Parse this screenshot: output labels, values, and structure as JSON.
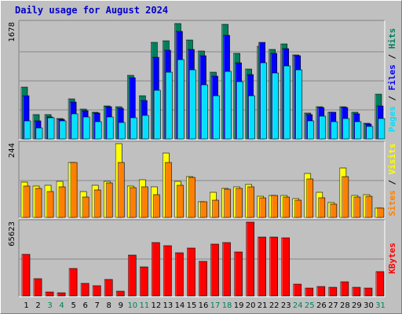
{
  "title": "Daily usage for August 2024",
  "colors": {
    "hits": "#00805c",
    "files": "#0000ff",
    "pages": "#00e0ff",
    "visits": "#ffff00",
    "sites": "#ff8000",
    "kbytes": "#ff0000",
    "weekday": "#000000",
    "weekend": "#00805c",
    "panel": "#c0c0c0"
  },
  "chart_data": [
    {
      "type": "bar",
      "ylabel_parts": [
        "Pages",
        "Files",
        "Hits"
      ],
      "ymax_label": "1678",
      "ylim": [
        0,
        1678
      ],
      "categories": [
        "1",
        "2",
        "3",
        "4",
        "5",
        "6",
        "7",
        "8",
        "9",
        "10",
        "11",
        "12",
        "13",
        "14",
        "15",
        "16",
        "17",
        "18",
        "19",
        "20",
        "21",
        "22",
        "23",
        "24",
        "25",
        "26",
        "27",
        "28",
        "29",
        "30",
        "31"
      ],
      "series": [
        {
          "name": "Hits",
          "values": [
            750,
            350,
            350,
            300,
            580,
            430,
            380,
            480,
            460,
            920,
            620,
            1400,
            1420,
            1670,
            1430,
            1270,
            960,
            1650,
            1240,
            1010,
            1340,
            1290,
            1370,
            1210,
            370,
            470,
            390,
            460,
            380,
            230,
            650
          ]
        },
        {
          "name": "Files",
          "values": [
            620,
            260,
            320,
            280,
            530,
            410,
            370,
            460,
            440,
            880,
            560,
            1180,
            1280,
            1550,
            1290,
            1200,
            910,
            1500,
            1100,
            930,
            1400,
            1240,
            1300,
            1200,
            350,
            450,
            380,
            450,
            360,
            220,
            480
          ]
        },
        {
          "name": "Pages",
          "values": [
            260,
            160,
            310,
            260,
            360,
            320,
            250,
            320,
            240,
            310,
            340,
            700,
            960,
            1150,
            1000,
            780,
            620,
            980,
            830,
            620,
            1100,
            950,
            1050,
            1000,
            260,
            330,
            250,
            300,
            250,
            180,
            300
          ]
        }
      ]
    },
    {
      "type": "bar",
      "ylabel_parts": [
        "Sites",
        "Visits"
      ],
      "ymax_label": "244",
      "ylim": [
        0,
        244
      ],
      "categories": [
        "1",
        "2",
        "3",
        "4",
        "5",
        "6",
        "7",
        "8",
        "9",
        "10",
        "11",
        "12",
        "13",
        "14",
        "15",
        "16",
        "17",
        "18",
        "19",
        "20",
        "21",
        "22",
        "23",
        "24",
        "25",
        "26",
        "27",
        "28",
        "29",
        "30",
        "31"
      ],
      "series": [
        {
          "name": "Visits",
          "values": [
            118,
            105,
            107,
            120,
            182,
            86,
            107,
            119,
            244,
            103,
            125,
            102,
            212,
            120,
            136,
            52,
            82,
            95,
            101,
            108,
            70,
            72,
            73,
            63,
            145,
            82,
            50,
            163,
            72,
            74,
            30
          ]
        },
        {
          "name": "Sites",
          "values": [
            105,
            96,
            85,
            100,
            182,
            68,
            92,
            115,
            182,
            98,
            102,
            75,
            182,
            106,
            132,
            52,
            56,
            94,
            95,
            102,
            65,
            72,
            67,
            56,
            127,
            64,
            45,
            135,
            67,
            70,
            30
          ]
        }
      ]
    },
    {
      "type": "bar",
      "ylabel_parts": [
        "KBytes"
      ],
      "ymax_label": "65623",
      "ylim": [
        0,
        65623
      ],
      "categories": [
        "1",
        "2",
        "3",
        "4",
        "5",
        "6",
        "7",
        "8",
        "9",
        "10",
        "11",
        "12",
        "13",
        "14",
        "15",
        "16",
        "17",
        "18",
        "19",
        "20",
        "21",
        "22",
        "23",
        "24",
        "25",
        "26",
        "27",
        "28",
        "29",
        "30",
        "31"
      ],
      "series": [
        {
          "name": "KBytes",
          "values": [
            36700,
            15200,
            3300,
            2800,
            24100,
            11400,
            9400,
            14600,
            4300,
            36000,
            26000,
            47500,
            44500,
            38300,
            42800,
            30800,
            45800,
            47400,
            38900,
            65600,
            52400,
            52400,
            52000,
            10800,
            7100,
            8700,
            7400,
            12700,
            7900,
            6800,
            21400
          ]
        }
      ]
    }
  ]
}
